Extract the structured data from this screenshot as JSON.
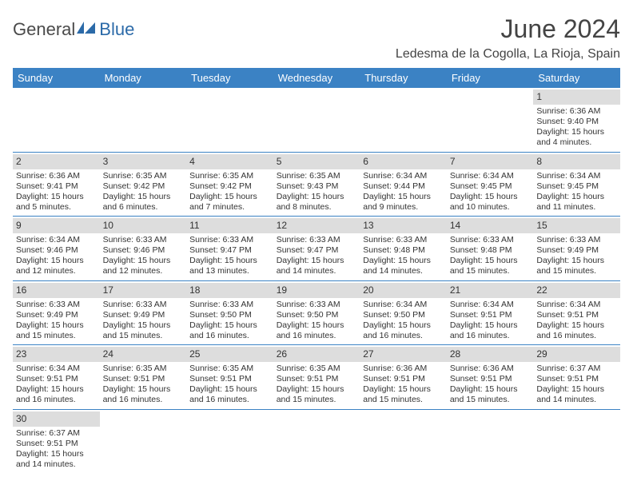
{
  "logo": {
    "text_a": "General",
    "text_b": "Blue",
    "color_a": "#4a4a4a",
    "color_b": "#2b6aa8"
  },
  "title": "June 2024",
  "location": "Ledesma de la Cogolla, La Rioja, Spain",
  "colors": {
    "header_bg": "#3b82c4",
    "header_text": "#ffffff",
    "daynum_bg": "#dddddd",
    "border": "#3b82c4",
    "text": "#333333"
  },
  "day_headers": [
    "Sunday",
    "Monday",
    "Tuesday",
    "Wednesday",
    "Thursday",
    "Friday",
    "Saturday"
  ],
  "weeks": [
    [
      null,
      null,
      null,
      null,
      null,
      null,
      {
        "n": "1",
        "sunrise": "6:36 AM",
        "sunset": "9:40 PM",
        "day_h": "15",
        "day_m": "4"
      }
    ],
    [
      {
        "n": "2",
        "sunrise": "6:36 AM",
        "sunset": "9:41 PM",
        "day_h": "15",
        "day_m": "5"
      },
      {
        "n": "3",
        "sunrise": "6:35 AM",
        "sunset": "9:42 PM",
        "day_h": "15",
        "day_m": "6"
      },
      {
        "n": "4",
        "sunrise": "6:35 AM",
        "sunset": "9:42 PM",
        "day_h": "15",
        "day_m": "7"
      },
      {
        "n": "5",
        "sunrise": "6:35 AM",
        "sunset": "9:43 PM",
        "day_h": "15",
        "day_m": "8"
      },
      {
        "n": "6",
        "sunrise": "6:34 AM",
        "sunset": "9:44 PM",
        "day_h": "15",
        "day_m": "9"
      },
      {
        "n": "7",
        "sunrise": "6:34 AM",
        "sunset": "9:45 PM",
        "day_h": "15",
        "day_m": "10"
      },
      {
        "n": "8",
        "sunrise": "6:34 AM",
        "sunset": "9:45 PM",
        "day_h": "15",
        "day_m": "11"
      }
    ],
    [
      {
        "n": "9",
        "sunrise": "6:34 AM",
        "sunset": "9:46 PM",
        "day_h": "15",
        "day_m": "12"
      },
      {
        "n": "10",
        "sunrise": "6:33 AM",
        "sunset": "9:46 PM",
        "day_h": "15",
        "day_m": "12"
      },
      {
        "n": "11",
        "sunrise": "6:33 AM",
        "sunset": "9:47 PM",
        "day_h": "15",
        "day_m": "13"
      },
      {
        "n": "12",
        "sunrise": "6:33 AM",
        "sunset": "9:47 PM",
        "day_h": "15",
        "day_m": "14"
      },
      {
        "n": "13",
        "sunrise": "6:33 AM",
        "sunset": "9:48 PM",
        "day_h": "15",
        "day_m": "14"
      },
      {
        "n": "14",
        "sunrise": "6:33 AM",
        "sunset": "9:48 PM",
        "day_h": "15",
        "day_m": "15"
      },
      {
        "n": "15",
        "sunrise": "6:33 AM",
        "sunset": "9:49 PM",
        "day_h": "15",
        "day_m": "15"
      }
    ],
    [
      {
        "n": "16",
        "sunrise": "6:33 AM",
        "sunset": "9:49 PM",
        "day_h": "15",
        "day_m": "15"
      },
      {
        "n": "17",
        "sunrise": "6:33 AM",
        "sunset": "9:49 PM",
        "day_h": "15",
        "day_m": "15"
      },
      {
        "n": "18",
        "sunrise": "6:33 AM",
        "sunset": "9:50 PM",
        "day_h": "15",
        "day_m": "16"
      },
      {
        "n": "19",
        "sunrise": "6:33 AM",
        "sunset": "9:50 PM",
        "day_h": "15",
        "day_m": "16"
      },
      {
        "n": "20",
        "sunrise": "6:34 AM",
        "sunset": "9:50 PM",
        "day_h": "15",
        "day_m": "16"
      },
      {
        "n": "21",
        "sunrise": "6:34 AM",
        "sunset": "9:51 PM",
        "day_h": "15",
        "day_m": "16"
      },
      {
        "n": "22",
        "sunrise": "6:34 AM",
        "sunset": "9:51 PM",
        "day_h": "15",
        "day_m": "16"
      }
    ],
    [
      {
        "n": "23",
        "sunrise": "6:34 AM",
        "sunset": "9:51 PM",
        "day_h": "15",
        "day_m": "16"
      },
      {
        "n": "24",
        "sunrise": "6:35 AM",
        "sunset": "9:51 PM",
        "day_h": "15",
        "day_m": "16"
      },
      {
        "n": "25",
        "sunrise": "6:35 AM",
        "sunset": "9:51 PM",
        "day_h": "15",
        "day_m": "16"
      },
      {
        "n": "26",
        "sunrise": "6:35 AM",
        "sunset": "9:51 PM",
        "day_h": "15",
        "day_m": "15"
      },
      {
        "n": "27",
        "sunrise": "6:36 AM",
        "sunset": "9:51 PM",
        "day_h": "15",
        "day_m": "15"
      },
      {
        "n": "28",
        "sunrise": "6:36 AM",
        "sunset": "9:51 PM",
        "day_h": "15",
        "day_m": "15"
      },
      {
        "n": "29",
        "sunrise": "6:37 AM",
        "sunset": "9:51 PM",
        "day_h": "15",
        "day_m": "14"
      }
    ],
    [
      {
        "n": "30",
        "sunrise": "6:37 AM",
        "sunset": "9:51 PM",
        "day_h": "15",
        "day_m": "14"
      },
      null,
      null,
      null,
      null,
      null,
      null
    ]
  ],
  "labels": {
    "sunrise": "Sunrise:",
    "sunset": "Sunset:",
    "daylight_a": "Daylight:",
    "hours": "hours",
    "and": "and",
    "minutes": "minutes."
  }
}
